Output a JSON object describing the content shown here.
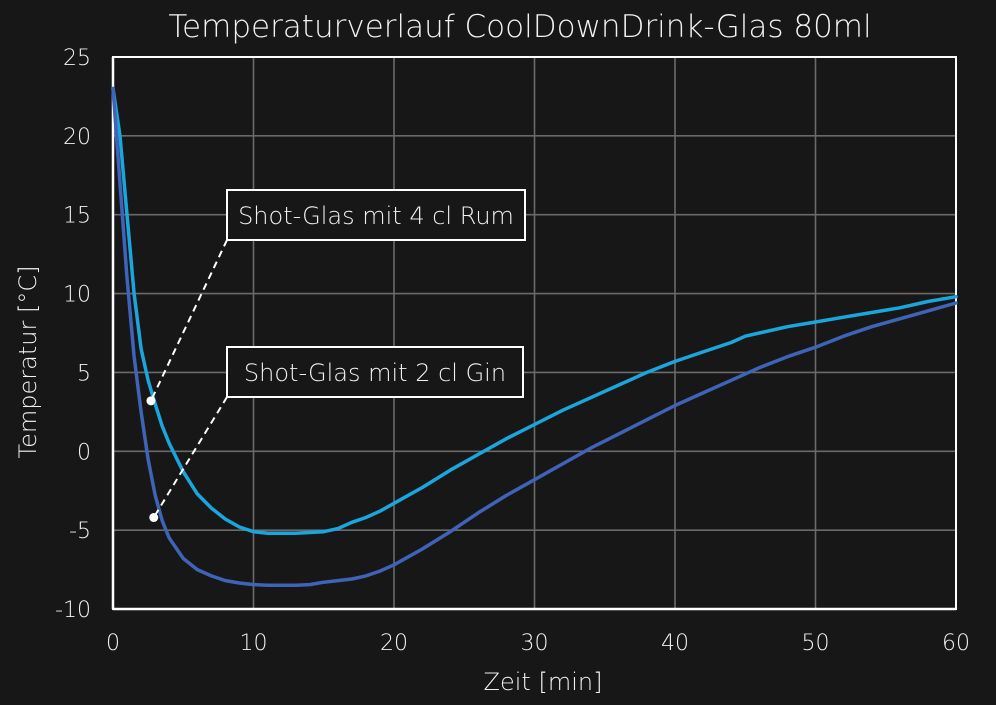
{
  "chart_data": {
    "type": "line",
    "title": "Temperaturverlauf CoolDownDrink-Glas 80ml",
    "xlabel": "Zeit [min]",
    "ylabel": "Temperatur [°C]",
    "xlim": [
      0,
      60
    ],
    "ylim": [
      -10,
      25
    ],
    "xticks": [
      0,
      10,
      20,
      30,
      40,
      50,
      60
    ],
    "yticks": [
      -10,
      -5,
      0,
      5,
      10,
      15,
      20,
      25
    ],
    "grid": true,
    "legend": "none",
    "series": [
      {
        "color": "#1aa6dc",
        "points": [
          [
            0,
            23
          ],
          [
            0.5,
            20
          ],
          [
            1,
            15
          ],
          [
            1.5,
            10
          ],
          [
            2,
            6.5
          ],
          [
            2.5,
            4.5
          ],
          [
            3,
            3
          ],
          [
            3.5,
            1.6
          ],
          [
            4,
            0.5
          ],
          [
            5,
            -1.3
          ],
          [
            6,
            -2.7
          ],
          [
            7,
            -3.6
          ],
          [
            8,
            -4.3
          ],
          [
            9,
            -4.8
          ],
          [
            10,
            -5.1
          ],
          [
            11,
            -5.2
          ],
          [
            12,
            -5.2
          ],
          [
            13,
            -5.2
          ],
          [
            14,
            -5.15
          ],
          [
            15,
            -5.1
          ],
          [
            16,
            -4.9
          ],
          [
            17,
            -4.5
          ],
          [
            18,
            -4.2
          ],
          [
            19,
            -3.8
          ],
          [
            20,
            -3.3
          ],
          [
            22,
            -2.3
          ],
          [
            24,
            -1.2
          ],
          [
            26,
            -0.2
          ],
          [
            28,
            0.8
          ],
          [
            30,
            1.7
          ],
          [
            32,
            2.6
          ],
          [
            34,
            3.4
          ],
          [
            36,
            4.2
          ],
          [
            38,
            5.0
          ],
          [
            40,
            5.7
          ],
          [
            42,
            6.3
          ],
          [
            44,
            6.9
          ],
          [
            45,
            7.3
          ],
          [
            46,
            7.5
          ],
          [
            48,
            7.9
          ],
          [
            50,
            8.2
          ],
          [
            52,
            8.5
          ],
          [
            54,
            8.8
          ],
          [
            56,
            9.1
          ],
          [
            58,
            9.5
          ],
          [
            60,
            9.8
          ]
        ]
      },
      {
        "color": "#3f63b8",
        "points": [
          [
            0,
            23
          ],
          [
            0.5,
            17
          ],
          [
            1,
            11
          ],
          [
            1.5,
            6
          ],
          [
            2,
            2.5
          ],
          [
            2.5,
            -0.5
          ],
          [
            3,
            -2.8
          ],
          [
            3.5,
            -4.4
          ],
          [
            4,
            -5.5
          ],
          [
            5,
            -6.8
          ],
          [
            6,
            -7.5
          ],
          [
            7,
            -7.9
          ],
          [
            8,
            -8.2
          ],
          [
            9,
            -8.35
          ],
          [
            10,
            -8.45
          ],
          [
            11,
            -8.5
          ],
          [
            12,
            -8.5
          ],
          [
            13,
            -8.5
          ],
          [
            14,
            -8.45
          ],
          [
            15,
            -8.3
          ],
          [
            16,
            -8.2
          ],
          [
            17,
            -8.1
          ],
          [
            18,
            -7.9
          ],
          [
            19,
            -7.6
          ],
          [
            20,
            -7.2
          ],
          [
            22,
            -6.2
          ],
          [
            24,
            -5.1
          ],
          [
            26,
            -3.9
          ],
          [
            28,
            -2.8
          ],
          [
            30,
            -1.8
          ],
          [
            32,
            -0.8
          ],
          [
            34,
            0.2
          ],
          [
            36,
            1.1
          ],
          [
            38,
            2.0
          ],
          [
            40,
            2.9
          ],
          [
            42,
            3.7
          ],
          [
            44,
            4.5
          ],
          [
            46,
            5.3
          ],
          [
            48,
            6.0
          ],
          [
            50,
            6.6
          ],
          [
            52,
            7.3
          ],
          [
            54,
            7.9
          ],
          [
            56,
            8.4
          ],
          [
            58,
            8.9
          ],
          [
            60,
            9.4
          ]
        ]
      }
    ],
    "annotations": [
      {
        "text": "Shot-Glas mit 4 cl Rum",
        "point": [
          2.7,
          3.2
        ]
      },
      {
        "text": "Shot-Glas mit 2 cl Gin",
        "point": [
          2.9,
          -4.2
        ]
      }
    ]
  }
}
